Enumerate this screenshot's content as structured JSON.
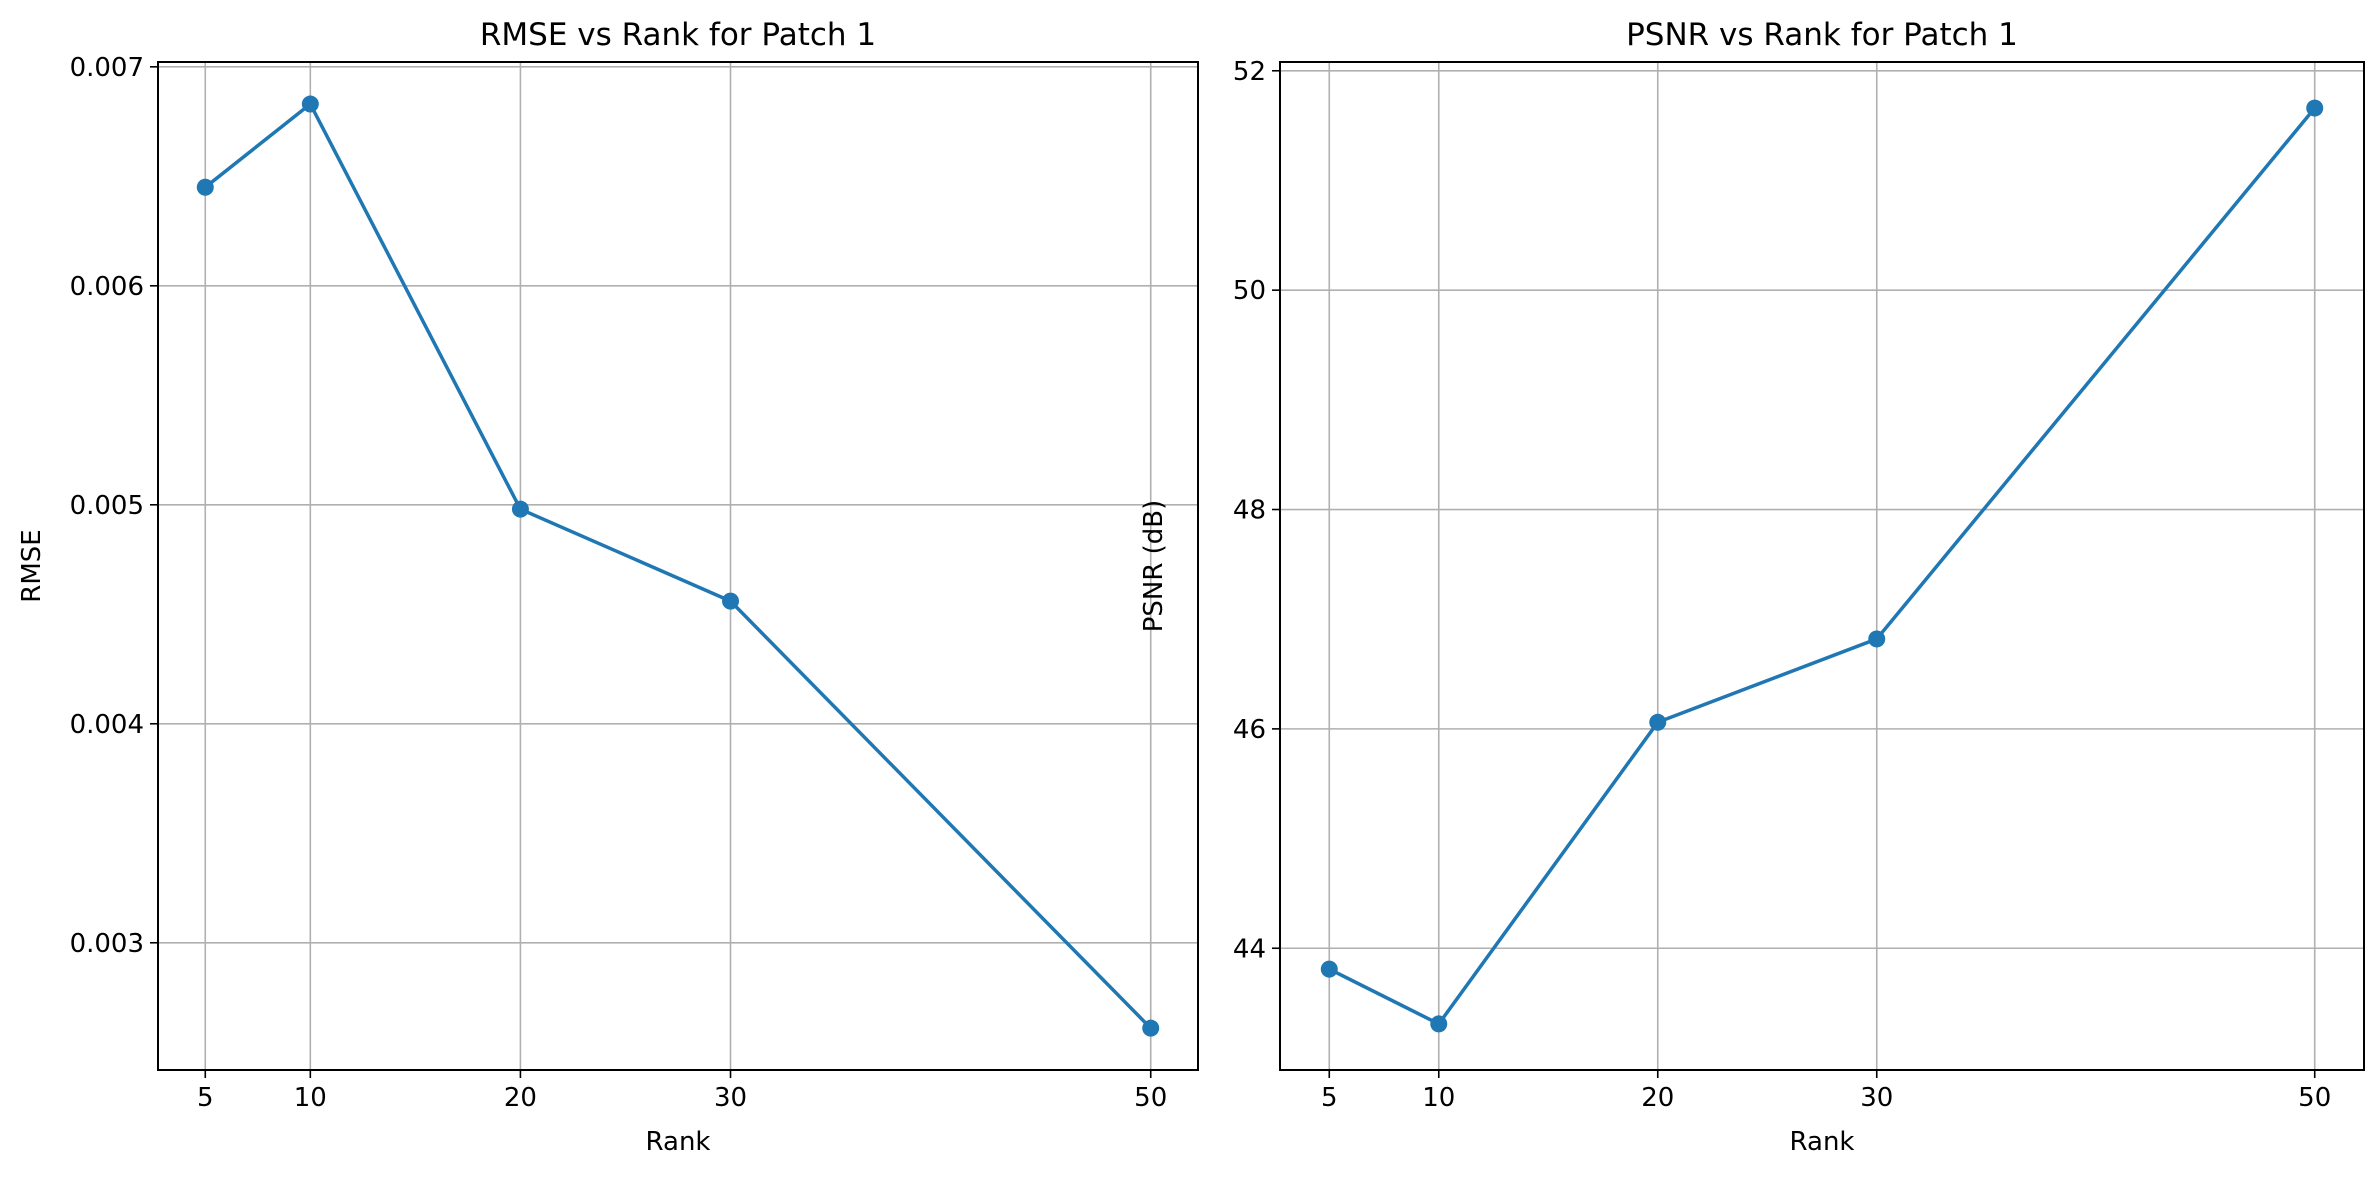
{
  "chart_data": [
    {
      "type": "line",
      "title": "RMSE vs Rank for Patch 1",
      "xlabel": "Rank",
      "ylabel": "RMSE",
      "x": [
        5,
        10,
        20,
        30,
        50
      ],
      "series": [
        {
          "values": [
            0.00645,
            0.00683,
            0.00498,
            0.00456,
            0.00261
          ],
          "color": "#1f77b4",
          "marker": "circle"
        }
      ],
      "xticks": [
        5,
        10,
        20,
        30,
        50
      ],
      "xtick_labels": [
        "5",
        "10",
        "20",
        "30",
        "50"
      ],
      "yticks": [
        0.003,
        0.004,
        0.005,
        0.006,
        0.007
      ],
      "ytick_labels": [
        "0.003",
        "0.004",
        "0.005",
        "0.006",
        "0.007"
      ],
      "xlim": [
        2.75,
        52.25
      ],
      "ylim": [
        0.002419,
        0.007022
      ],
      "grid": true
    },
    {
      "type": "line",
      "title": "PSNR vs Rank for Patch 1",
      "xlabel": "Rank",
      "ylabel": "PSNR (dB)",
      "x": [
        5,
        10,
        20,
        30,
        50
      ],
      "series": [
        {
          "values": [
            43.81,
            43.31,
            46.06,
            46.82,
            51.66
          ],
          "color": "#1f77b4",
          "marker": "circle"
        }
      ],
      "xticks": [
        5,
        10,
        20,
        30,
        50
      ],
      "xtick_labels": [
        "5",
        "10",
        "20",
        "30",
        "50"
      ],
      "yticks": [
        44,
        46,
        48,
        50,
        52
      ],
      "ytick_labels": [
        "44",
        "46",
        "48",
        "50",
        "52"
      ],
      "xlim": [
        2.75,
        52.25
      ],
      "ylim": [
        42.89,
        52.08
      ],
      "grid": true
    }
  ]
}
